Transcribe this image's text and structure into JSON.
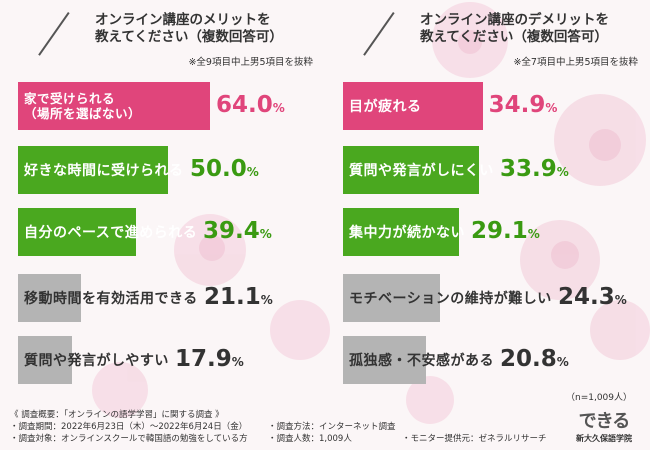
{
  "colors": {
    "pink": "#e0457b",
    "green": "#4aa81f",
    "gray": "#b4b4b4",
    "pink_text": "#e0457b",
    "green_text": "#3a9a12",
    "gray_text": "#333333"
  },
  "left": {
    "title": "オンライン講座のメリットを\n教えてください（複数回答可）",
    "note": "※全9項目中上男5項目を抜粋"
  },
  "right": {
    "title": "オンライン講座のデメリットを\n教えてください（複数回答可）",
    "note": "※全7項目中上男5項目を抜粋"
  },
  "n_note": "（n=1,009人）",
  "footer": {
    "l1": "《 調査概要：「オンラインの語学学習」に関する調査 》",
    "l2": "・調査期間：2022年6月23日（木）～2022年6月24日（金）",
    "l3": "・調査対象：オンラインスクールで韓国語の勉強をしている方",
    "m1": "・調査方法：インターネット調査",
    "m2": "・調査人数：1,009人",
    "r1": "・モニター提供元：ゼネラルリサーチ"
  },
  "logo": {
    "mark": "できる",
    "name": "新大久保語学院"
  },
  "chart_data": [
    {
      "type": "bar",
      "title": "オンライン講座のメリットを教えてください（複数回答可）",
      "categories": [
        "家で受けられる\n（場所を選ばない）",
        "好きな時間に受けられる",
        "自分のペースで進められる",
        "移動時間を有効活用できる",
        "質問や発言がしやすい"
      ],
      "values": [
        64.0,
        50.0,
        39.4,
        21.1,
        17.9
      ],
      "value_labels": [
        {
          "num": "64.0",
          "unit": "%"
        },
        {
          "num": "50.0",
          "unit": "%"
        },
        {
          "num": "39.4",
          "unit": "%"
        },
        {
          "num": "21.1",
          "unit": "%"
        },
        {
          "num": "17.9",
          "unit": "%"
        }
      ],
      "xlim": [
        0,
        100
      ]
    },
    {
      "type": "bar",
      "title": "オンライン講座のデメリットを教えてください（複数回答可）",
      "categories": [
        "目が疲れる",
        "質問や発言がしにくい",
        "集中力が続かない",
        "モチベーションの維持が難しい",
        "孤独感・不安感がある"
      ],
      "values": [
        34.9,
        33.9,
        29.1,
        24.3,
        20.8
      ],
      "value_labels": [
        {
          "num": "34.9",
          "unit": "%"
        },
        {
          "num": "33.9",
          "unit": "%"
        },
        {
          "num": "29.1",
          "unit": "%"
        },
        {
          "num": "24.3",
          "unit": "%"
        },
        {
          "num": "20.8",
          "unit": "%"
        }
      ],
      "xlim": [
        0,
        100
      ]
    }
  ]
}
